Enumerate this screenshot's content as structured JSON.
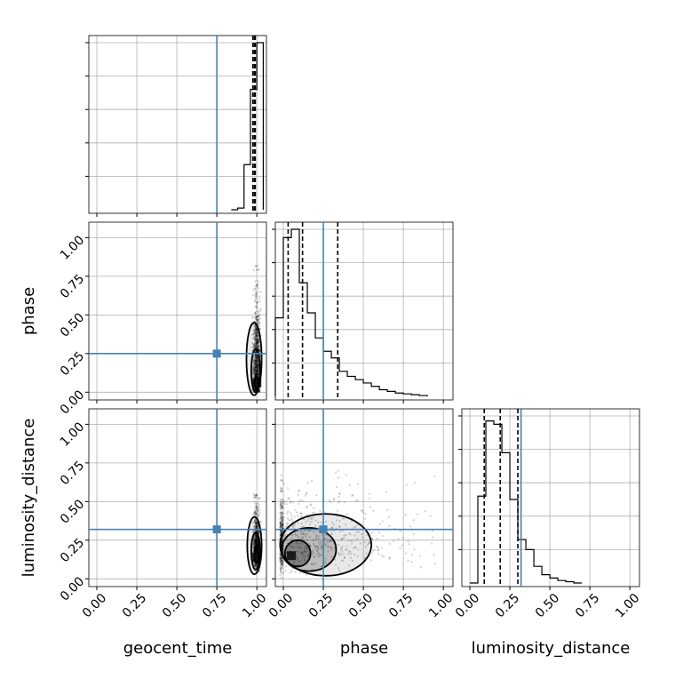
{
  "chart_data": {
    "type": "corner",
    "parameters": [
      "geocent_time",
      "phase",
      "luminosity_distance"
    ],
    "axis_labels": {
      "x": [
        "geocent_time",
        "phase",
        "luminosity_distance"
      ],
      "y": [
        "phase",
        "luminosity_distance"
      ]
    },
    "tick_labels": [
      "0.00",
      "0.25",
      "0.50",
      "0.75",
      "1.00"
    ],
    "tick_values": [
      0.0,
      0.25,
      0.5,
      0.75,
      1.0
    ],
    "xlim": [
      -0.05,
      1.06
    ],
    "ylim": [
      -0.05,
      1.1
    ],
    "grid": true,
    "truth_color": "#4682b4",
    "truths": {
      "geocent_time": 0.75,
      "phase": 0.25,
      "luminosity_distance": 0.32
    },
    "marginals": [
      {
        "parameter": "geocent_time",
        "bin_edges": [
          0.84,
          0.88,
          0.92,
          0.96,
          1.0,
          1.04
        ],
        "density": [
          0.0,
          0.01,
          0.27,
          0.72,
          1.0
        ],
        "quantile_lines": [
          0.975,
          0.985,
          0.99
        ]
      },
      {
        "parameter": "phase",
        "bin_edges": [
          -0.05,
          0.0,
          0.05,
          0.1,
          0.15,
          0.2,
          0.25,
          0.3,
          0.35,
          0.4,
          0.45,
          0.5,
          0.55,
          0.6,
          0.65,
          0.7,
          0.75,
          0.8,
          0.85,
          0.9
        ],
        "density": [
          0.47,
          0.95,
          1.0,
          0.68,
          0.5,
          0.35,
          0.27,
          0.23,
          0.15,
          0.12,
          0.1,
          0.08,
          0.06,
          0.04,
          0.03,
          0.02,
          0.015,
          0.01,
          0.005
        ],
        "quantile_lines": [
          0.03,
          0.12,
          0.34
        ]
      },
      {
        "parameter": "luminosity_distance",
        "bin_edges": [
          0.0,
          0.05,
          0.1,
          0.15,
          0.2,
          0.25,
          0.3,
          0.35,
          0.4,
          0.45,
          0.5,
          0.55,
          0.6,
          0.65,
          0.7
        ],
        "density": [
          0.0,
          0.52,
          0.97,
          0.95,
          0.78,
          0.5,
          0.26,
          0.2,
          0.1,
          0.05,
          0.03,
          0.015,
          0.008,
          0.0
        ],
        "quantile_lines": [
          0.09,
          0.19,
          0.3
        ]
      }
    ],
    "joint_distributions": [
      {
        "x": "geocent_time",
        "y": "phase",
        "mode": [
          1.0,
          0.06
        ],
        "scatter_extent": {
          "x": [
            0.92,
            1.03
          ],
          "y": [
            0.0,
            0.82
          ]
        },
        "contour_levels": [
          {
            "x": [
              0.935,
              1.03
            ],
            "y": [
              -0.02,
              0.45
            ]
          },
          {
            "x": [
              0.965,
              1.02
            ],
            "y": [
              0.0,
              0.28
            ]
          },
          {
            "x": [
              0.985,
              1.01
            ],
            "y": [
              0.02,
              0.1
            ]
          }
        ]
      },
      {
        "x": "geocent_time",
        "y": "luminosity_distance",
        "mode": [
          1.0,
          0.14
        ],
        "scatter_extent": {
          "x": [
            0.93,
            1.03
          ],
          "y": [
            0.04,
            0.55
          ]
        },
        "contour_levels": [
          {
            "x": [
              0.94,
              1.03
            ],
            "y": [
              0.03,
              0.4
            ]
          },
          {
            "x": [
              0.965,
              1.02
            ],
            "y": [
              0.06,
              0.3
            ]
          },
          {
            "x": [
              0.985,
              1.01
            ],
            "y": [
              0.1,
              0.22
            ]
          }
        ]
      },
      {
        "x": "phase",
        "y": "luminosity_distance",
        "mode": [
          0.05,
          0.15
        ],
        "scatter_extent": {
          "x": [
            -0.02,
            0.95
          ],
          "y": [
            0.0,
            0.7
          ]
        },
        "contour_levels": [
          {
            "x": [
              -0.02,
              0.55
            ],
            "y": [
              0.02,
              0.42
            ]
          },
          {
            "x": [
              -0.01,
              0.33
            ],
            "y": [
              0.05,
              0.33
            ]
          },
          {
            "x": [
              0.01,
              0.17
            ],
            "y": [
              0.08,
              0.25
            ]
          }
        ]
      }
    ]
  }
}
